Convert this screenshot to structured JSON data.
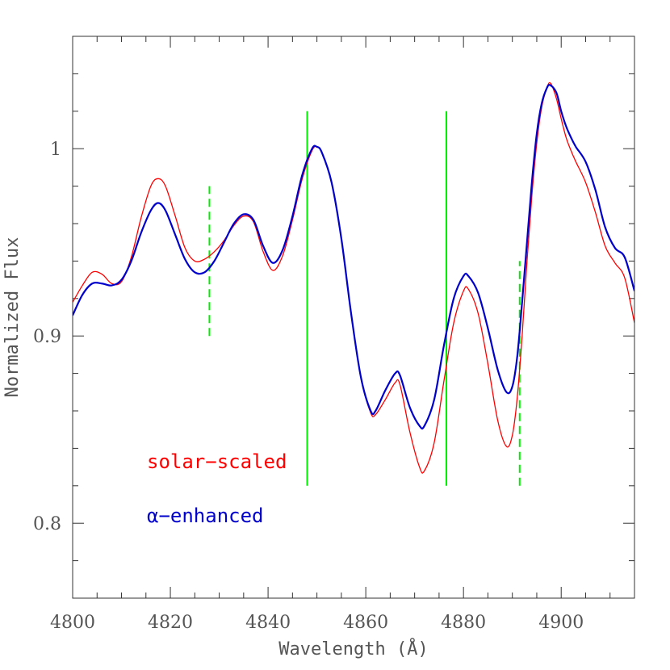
{
  "chart_data": {
    "type": "line",
    "xlabel": "Wavelength (Å)",
    "ylabel": "Normalized Flux",
    "xlim": [
      4800,
      4915
    ],
    "ylim": [
      0.76,
      1.06
    ],
    "x_ticks": [
      "4800",
      "4820",
      "4840",
      "4860",
      "4880",
      "4900"
    ],
    "y_ticks": [
      "0.8",
      "0.9",
      "1"
    ],
    "series": [
      {
        "name": "solar-scaled",
        "color": "#ff0000",
        "width": 1.3,
        "points": [
          [
            4800,
            0.918
          ],
          [
            4802,
            0.927
          ],
          [
            4804,
            0.934
          ],
          [
            4806,
            0.933
          ],
          [
            4808,
            0.928
          ],
          [
            4810,
            0.929
          ],
          [
            4812,
            0.942
          ],
          [
            4814,
            0.963
          ],
          [
            4816,
            0.98
          ],
          [
            4817.5,
            0.984
          ],
          [
            4819,
            0.98
          ],
          [
            4821,
            0.964
          ],
          [
            4823,
            0.947
          ],
          [
            4825,
            0.94
          ],
          [
            4827,
            0.941
          ],
          [
            4829,
            0.945
          ],
          [
            4831,
            0.951
          ],
          [
            4833,
            0.959
          ],
          [
            4835,
            0.964
          ],
          [
            4837,
            0.961
          ],
          [
            4839,
            0.945
          ],
          [
            4841,
            0.935
          ],
          [
            4843,
            0.943
          ],
          [
            4845,
            0.962
          ],
          [
            4847,
            0.984
          ],
          [
            4849,
            0.999
          ],
          [
            4850,
            1.001
          ],
          [
            4851,
            0.998
          ],
          [
            4853,
            0.982
          ],
          [
            4855,
            0.952
          ],
          [
            4857,
            0.912
          ],
          [
            4859,
            0.878
          ],
          [
            4861,
            0.859
          ],
          [
            4862,
            0.858
          ],
          [
            4864,
            0.866
          ],
          [
            4866,
            0.875
          ],
          [
            4867,
            0.874
          ],
          [
            4869,
            0.849
          ],
          [
            4871,
            0.83
          ],
          [
            4872,
            0.828
          ],
          [
            4874,
            0.843
          ],
          [
            4876,
            0.876
          ],
          [
            4878,
            0.907
          ],
          [
            4880,
            0.924
          ],
          [
            4881,
            0.925
          ],
          [
            4883,
            0.912
          ],
          [
            4885,
            0.885
          ],
          [
            4887,
            0.855
          ],
          [
            4888.8,
            0.841
          ],
          [
            4890,
            0.847
          ],
          [
            4891,
            0.867
          ],
          [
            4892,
            0.9
          ],
          [
            4893,
            0.94
          ],
          [
            4894,
            0.975
          ],
          [
            4895,
            1.003
          ],
          [
            4896,
            1.022
          ],
          [
            4897,
            1.032
          ],
          [
            4897.8,
            1.035
          ],
          [
            4899,
            1.027
          ],
          [
            4900,
            1.016
          ],
          [
            4901,
            1.006
          ],
          [
            4902,
            0.999
          ],
          [
            4903,
            0.993
          ],
          [
            4905,
            0.982
          ],
          [
            4907,
            0.966
          ],
          [
            4909,
            0.948
          ],
          [
            4911,
            0.939
          ],
          [
            4913,
            0.931
          ],
          [
            4915,
            0.907
          ]
        ]
      },
      {
        "name": "α-enhanced",
        "color": "#0000cc",
        "width": 2.2,
        "points": [
          [
            4800,
            0.911
          ],
          [
            4802,
            0.922
          ],
          [
            4804,
            0.928
          ],
          [
            4806,
            0.928
          ],
          [
            4808,
            0.927
          ],
          [
            4810,
            0.93
          ],
          [
            4812,
            0.94
          ],
          [
            4814,
            0.955
          ],
          [
            4816,
            0.967
          ],
          [
            4817.5,
            0.971
          ],
          [
            4819,
            0.967
          ],
          [
            4821,
            0.954
          ],
          [
            4823,
            0.941
          ],
          [
            4825,
            0.934
          ],
          [
            4827,
            0.934
          ],
          [
            4829,
            0.94
          ],
          [
            4831,
            0.95
          ],
          [
            4833,
            0.96
          ],
          [
            4835,
            0.965
          ],
          [
            4837,
            0.962
          ],
          [
            4839,
            0.948
          ],
          [
            4841,
            0.939
          ],
          [
            4843,
            0.946
          ],
          [
            4845,
            0.964
          ],
          [
            4847,
            0.986
          ],
          [
            4849,
            1.0
          ],
          [
            4850,
            1.001
          ],
          [
            4851,
            0.998
          ],
          [
            4853,
            0.982
          ],
          [
            4855,
            0.952
          ],
          [
            4857,
            0.912
          ],
          [
            4859,
            0.878
          ],
          [
            4861,
            0.86
          ],
          [
            4862,
            0.86
          ],
          [
            4864,
            0.871
          ],
          [
            4866,
            0.88
          ],
          [
            4867,
            0.879
          ],
          [
            4869,
            0.862
          ],
          [
            4871,
            0.852
          ],
          [
            4872,
            0.852
          ],
          [
            4874,
            0.866
          ],
          [
            4876,
            0.895
          ],
          [
            4878,
            0.92
          ],
          [
            4880,
            0.932
          ],
          [
            4881,
            0.932
          ],
          [
            4883,
            0.923
          ],
          [
            4885,
            0.904
          ],
          [
            4887,
            0.882
          ],
          [
            4888.8,
            0.87
          ],
          [
            4890,
            0.873
          ],
          [
            4891,
            0.889
          ],
          [
            4892,
            0.918
          ],
          [
            4893,
            0.95
          ],
          [
            4894,
            0.982
          ],
          [
            4895,
            1.008
          ],
          [
            4896,
            1.024
          ],
          [
            4897,
            1.032
          ],
          [
            4897.7,
            1.034
          ],
          [
            4899,
            1.03
          ],
          [
            4900,
            1.02
          ],
          [
            4901,
            1.012
          ],
          [
            4902,
            1.006
          ],
          [
            4903,
            1.001
          ],
          [
            4905,
            0.993
          ],
          [
            4907,
            0.978
          ],
          [
            4909,
            0.958
          ],
          [
            4911,
            0.947
          ],
          [
            4913,
            0.942
          ],
          [
            4915,
            0.924
          ]
        ]
      }
    ],
    "markers": [
      {
        "x": 4828,
        "y0": 0.9,
        "y1": 0.98,
        "style": "dashed",
        "color": "#00ee00"
      },
      {
        "x": 4848,
        "y0": 0.82,
        "y1": 1.02,
        "style": "solid",
        "color": "#00ee00"
      },
      {
        "x": 4876.5,
        "y0": 0.82,
        "y1": 1.02,
        "style": "solid",
        "color": "#00ee00"
      },
      {
        "x": 4891.5,
        "y0": 0.82,
        "y1": 0.94,
        "style": "dashed",
        "color": "#00ee00"
      }
    ],
    "legend": [
      {
        "label": "solar−scaled",
        "color": "#ff0000"
      },
      {
        "label": "α−enhanced",
        "color": "#0000cc"
      }
    ]
  }
}
